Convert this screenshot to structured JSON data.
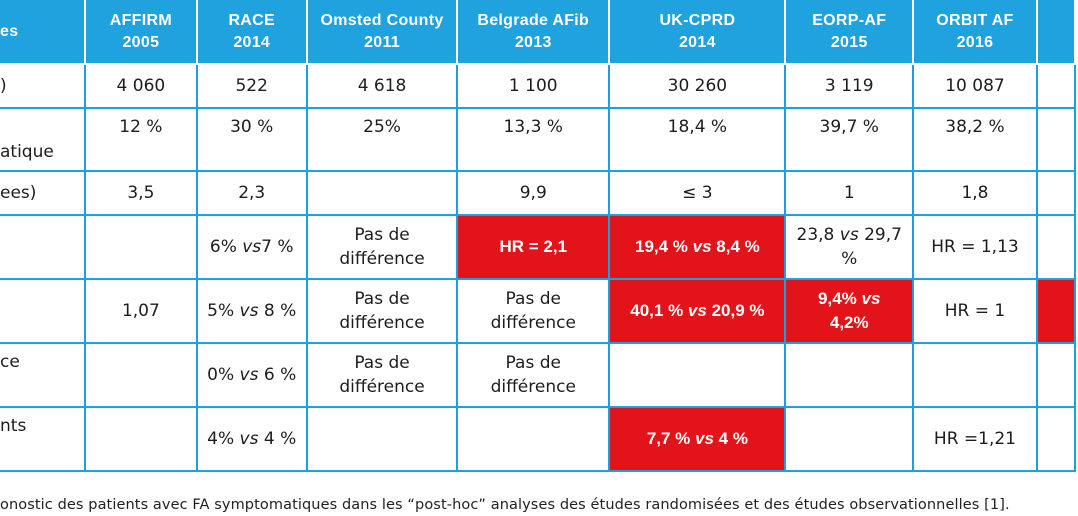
{
  "colors": {
    "header": "#1fa2dd",
    "grid": "#1ba1de",
    "highlight": "#e2141a"
  },
  "header": [
    {
      "l1": "es",
      "l2": ""
    },
    {
      "l1": "AFFIRM",
      "l2": "2005"
    },
    {
      "l1": "RACE",
      "l2": "2014"
    },
    {
      "l1": "Omsted County",
      "l2": "2011"
    },
    {
      "l1": "Belgrade AFib",
      "l2": "2013"
    },
    {
      "l1": "UK-CPRD",
      "l2": "2014"
    },
    {
      "l1": "EORP-AF",
      "l2": "2015"
    },
    {
      "l1": "ORBIT AF",
      "l2": "2016"
    },
    {
      "l1": "",
      "l2": ""
    }
  ],
  "rows": [
    {
      "label": ")",
      "cells": [
        "4 060",
        "522",
        "4 618",
        "1 100",
        "30 260",
        "3 119",
        "10 087",
        ""
      ]
    },
    {
      "label": "atique",
      "cells": [
        "12 %",
        "30 %",
        "25%",
        "13,3 %",
        "18,4 %",
        "39,7 %",
        "38,2 %",
        ""
      ]
    },
    {
      "label": "ees)",
      "cells": [
        "3,5",
        "2,3",
        "",
        "9,9",
        "≤ 3",
        "1",
        "1,8",
        ""
      ]
    },
    {
      "label": "",
      "cells": [
        "",
        "6% vs7 %",
        "Pas de différence",
        "HR = 2,1",
        "19,4 % vs 8,4 %",
        "23,8 vs 29,7 %",
        "HR = 1,13",
        ""
      ],
      "pieces": {
        "c2": {
          "a": "6% ",
          "b": "vs",
          "c": "7 %"
        },
        "c3": {
          "a": "Pas de",
          "b": "différence"
        },
        "c5": {
          "a": "19,4 % ",
          "b": "vs",
          "c": " 8,4 %"
        },
        "c6": {
          "a": "23,8 ",
          "b": "vs",
          "c": " 29,7",
          "d": "%"
        }
      }
    },
    {
      "label": "",
      "cells": [
        "1,07",
        "5% vs 8 %",
        "Pas de différence",
        "Pas de différence",
        "40,1 % vs 20,9 %",
        "9,4% vs 4,2%",
        "HR = 1",
        ""
      ],
      "pieces": {
        "c2": {
          "a": "5% ",
          "b": "vs",
          "c": " 8 %"
        },
        "c3": {
          "a": "Pas de",
          "b": "différence"
        },
        "c4": {
          "a": "Pas de",
          "b": "différence"
        },
        "c5": {
          "a": "40,1 % ",
          "b": "vs",
          "c": " 20,9 %"
        },
        "c6": {
          "a": "9,4% ",
          "b": "vs",
          "c": "4,2%"
        }
      }
    },
    {
      "label": "ce",
      "cells": [
        "",
        "0% vs 6 %",
        "Pas de différence",
        "Pas de différence",
        "",
        "",
        "",
        ""
      ],
      "pieces": {
        "c2": {
          "a": "0% ",
          "b": "vs",
          "c": " 6 %"
        },
        "c3": {
          "a": "Pas de",
          "b": "différence"
        },
        "c4": {
          "a": "Pas de",
          "b": "différence"
        }
      }
    },
    {
      "label": "nts",
      "cells": [
        "",
        "4% vs 4 %",
        "",
        "",
        "7,7 % vs 4 %",
        "",
        "HR =1,21",
        ""
      ],
      "pieces": {
        "c2": {
          "a": "4% ",
          "b": "vs",
          "c": " 4 %"
        },
        "c5": {
          "a": "7,7 % ",
          "b": "vs",
          "c": " 4 %"
        }
      }
    }
  ],
  "caption": "onostic des patients avec FA symptomatiques dans les “post-hoc” analyses des études randomisées et des études observationnelles [1]."
}
